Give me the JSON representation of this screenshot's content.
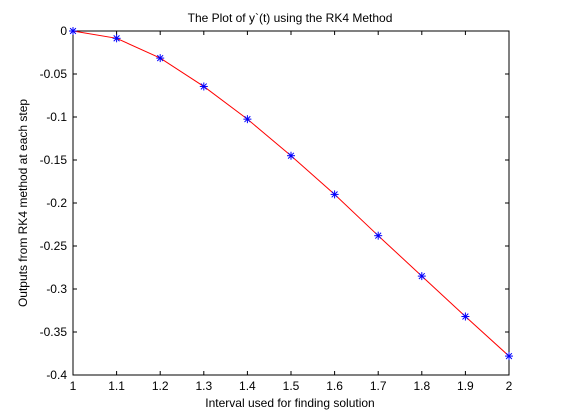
{
  "chart_data": {
    "type": "line",
    "title": "The Plot of y`(t) using the RK4 Method",
    "xlabel": "Interval used for finding solution",
    "ylabel": "Outputs from RK4 method at each step",
    "xlim": [
      1,
      2
    ],
    "ylim": [
      -0.4,
      0
    ],
    "xticks": [
      1,
      1.1,
      1.2,
      1.3,
      1.4,
      1.5,
      1.6,
      1.7,
      1.8,
      1.9,
      2
    ],
    "xtick_labels": [
      "1",
      "1.1",
      "1.2",
      "1.3",
      "1.4",
      "1.5",
      "1.6",
      "1.7",
      "1.8",
      "1.9",
      "2"
    ],
    "yticks": [
      0,
      -0.05,
      -0.1,
      -0.15,
      -0.2,
      -0.25,
      -0.3,
      -0.35,
      -0.4
    ],
    "ytick_labels": [
      "0",
      "-0.05",
      "-0.1",
      "-0.15",
      "-0.2",
      "-0.25",
      "-0.3",
      "-0.35",
      "-0.4"
    ],
    "grid": false,
    "series": [
      {
        "style": "line",
        "color": "#ff0000",
        "x": [
          1,
          1.1,
          1.2,
          1.3,
          1.4,
          1.5,
          1.6,
          1.7,
          1.8,
          1.9,
          2
        ],
        "y": [
          0,
          -0.0085,
          -0.0315,
          -0.0645,
          -0.1025,
          -0.145,
          -0.19,
          -0.238,
          -0.285,
          -0.332,
          -0.378
        ]
      },
      {
        "style": "markers",
        "marker": "asterisk",
        "color": "#0000ff",
        "x": [
          1,
          1.1,
          1.2,
          1.3,
          1.4,
          1.5,
          1.6,
          1.7,
          1.8,
          1.9,
          2
        ],
        "y": [
          0,
          -0.0085,
          -0.0315,
          -0.0645,
          -0.1025,
          -0.145,
          -0.19,
          -0.238,
          -0.285,
          -0.332,
          -0.378
        ]
      }
    ]
  }
}
